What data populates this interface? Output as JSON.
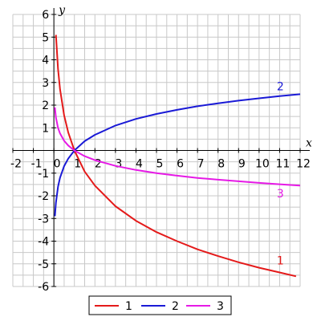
{
  "chart_data": {
    "type": "line",
    "xlabel": "x",
    "ylabel": "y",
    "xlim": [
      -2,
      12
    ],
    "ylim": [
      -6,
      6
    ],
    "x_ticks": [
      -2,
      -1,
      0,
      1,
      2,
      3,
      4,
      5,
      6,
      7,
      8,
      9,
      10,
      11,
      12
    ],
    "x_tick_labels": [
      "-2",
      "-1",
      "0",
      "1",
      "2",
      "3",
      "4",
      "5",
      "6",
      "7",
      "8",
      "9",
      "10",
      "11",
      "12"
    ],
    "y_ticks": [
      -6,
      -5,
      -4,
      -3,
      -2,
      -1,
      1,
      2,
      3,
      4,
      5,
      6
    ],
    "y_tick_labels": [
      "-6",
      "-5",
      "-4",
      "-3",
      "-2",
      "-1",
      "1",
      "2",
      "3",
      "4",
      "5",
      "6"
    ],
    "grid": true,
    "legend_position": "bottom-center",
    "series": [
      {
        "name": "1",
        "color": "#e41a1a",
        "x": [
          0.1,
          0.2,
          0.3,
          0.5,
          0.7,
          1,
          1.5,
          2,
          3,
          4,
          5,
          6,
          7,
          8,
          9,
          10,
          11,
          11.8
        ],
        "y": [
          5.1,
          3.6,
          2.7,
          1.55,
          0.8,
          0,
          -0.93,
          -1.55,
          -2.46,
          -3.1,
          -3.6,
          -4.0,
          -4.36,
          -4.66,
          -4.93,
          -5.17,
          -5.38,
          -5.55
        ],
        "label": "1"
      },
      {
        "name": "2",
        "color": "#1a1ad6",
        "x": [
          0.05,
          0.1,
          0.2,
          0.3,
          0.5,
          0.7,
          1,
          1.5,
          2,
          3,
          4,
          5,
          6,
          7,
          8,
          9,
          10,
          11,
          12
        ],
        "y": [
          -2.9,
          -2.3,
          -1.6,
          -1.2,
          -0.69,
          -0.36,
          0,
          0.41,
          0.69,
          1.1,
          1.39,
          1.61,
          1.79,
          1.95,
          2.08,
          2.2,
          2.3,
          2.4,
          2.48
        ],
        "label": "2"
      },
      {
        "name": "3",
        "color": "#e61ae6",
        "x": [
          0.05,
          0.1,
          0.2,
          0.3,
          0.5,
          0.7,
          1,
          1.5,
          2,
          3,
          4,
          5,
          6,
          7,
          8,
          9,
          10,
          11,
          12
        ],
        "y": [
          1.9,
          1.45,
          1.0,
          0.75,
          0.43,
          0.22,
          0,
          -0.25,
          -0.43,
          -0.68,
          -0.86,
          -1.0,
          -1.11,
          -1.21,
          -1.29,
          -1.36,
          -1.43,
          -1.49,
          -1.55
        ],
        "label": "3"
      }
    ]
  }
}
